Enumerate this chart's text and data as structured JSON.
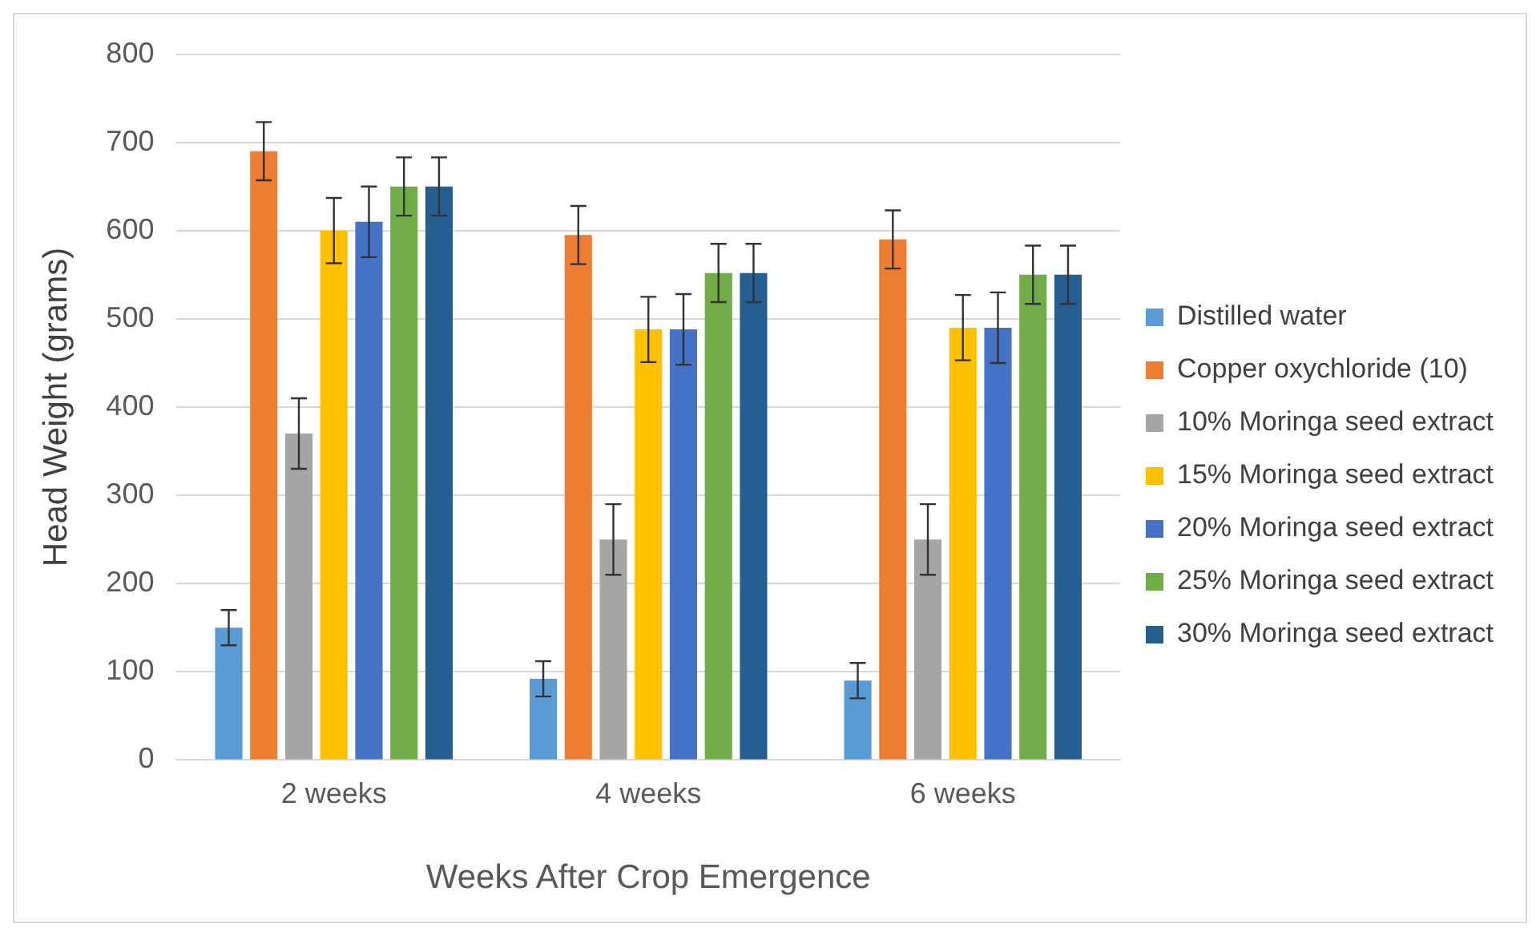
{
  "chart_data": {
    "type": "bar",
    "xlabel": "Weeks After Crop Emergence",
    "ylabel": "Head Weight (grams)",
    "categories": [
      "2 weeks",
      "4 weeks",
      "6 weeks"
    ],
    "ylim": [
      0,
      800
    ],
    "yticks": [
      0,
      100,
      200,
      300,
      400,
      500,
      600,
      700,
      800
    ],
    "grid": "y",
    "legend": "right",
    "series": [
      {
        "name": "Distilled water",
        "color": "#5b9bd5",
        "values": [
          150,
          92,
          90
        ],
        "errors": [
          20,
          20,
          20
        ]
      },
      {
        "name": "Copper oxychloride (10)",
        "color": "#ed7d31",
        "values": [
          690,
          595,
          590
        ],
        "errors": [
          33,
          33,
          33
        ]
      },
      {
        "name": "10% Moringa seed extract",
        "color": "#a5a5a5",
        "values": [
          370,
          250,
          250
        ],
        "errors": [
          40,
          40,
          40
        ]
      },
      {
        "name": "15% Moringa seed extract",
        "color": "#ffc000",
        "values": [
          600,
          488,
          490
        ],
        "errors": [
          37,
          37,
          37
        ]
      },
      {
        "name": "20% Moringa seed extract",
        "color": "#4472c4",
        "values": [
          610,
          488,
          490
        ],
        "errors": [
          40,
          40,
          40
        ]
      },
      {
        "name": "25% Moringa seed extract",
        "color": "#70ad47",
        "values": [
          650,
          552,
          550
        ],
        "errors": [
          33,
          33,
          33
        ]
      },
      {
        "name": "30% Moringa seed extract",
        "color": "#255e91",
        "values": [
          650,
          552,
          550
        ],
        "errors": [
          33,
          33,
          33
        ]
      }
    ]
  }
}
